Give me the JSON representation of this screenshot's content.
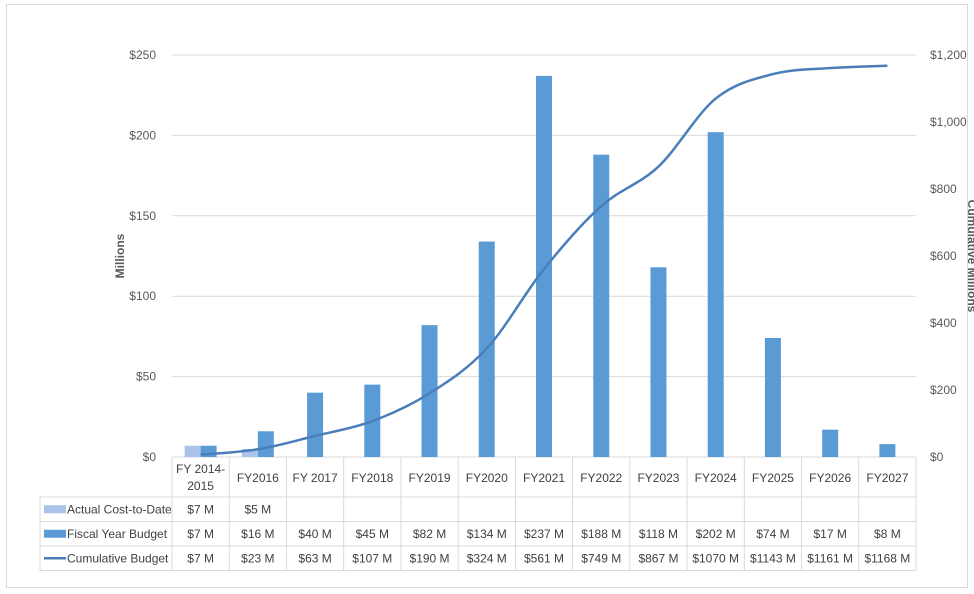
{
  "chart_data": {
    "type": "bar",
    "categories": [
      "FY 2014-2015",
      "FY2016",
      "FY 2017",
      "FY2018",
      "FY2019",
      "FY2020",
      "FY2021",
      "FY2022",
      "FY2023",
      "FY2024",
      "FY2025",
      "FY2026",
      "FY2027"
    ],
    "category_lines": [
      [
        "FY 2014-",
        "2015"
      ],
      [
        "FY2016"
      ],
      [
        "FY 2017"
      ],
      [
        "FY2018"
      ],
      [
        "FY2019"
      ],
      [
        "FY2020"
      ],
      [
        "FY2021"
      ],
      [
        "FY2022"
      ],
      [
        "FY2023"
      ],
      [
        "FY2024"
      ],
      [
        "FY2025"
      ],
      [
        "FY2026"
      ],
      [
        "FY2027"
      ]
    ],
    "ylabel": "Millions",
    "y2label": "Cumulative Millions",
    "ylim": [
      0,
      250
    ],
    "y2lim": [
      0,
      1200
    ],
    "yticks": [
      0,
      50,
      100,
      150,
      200,
      250
    ],
    "ytick_labels": [
      "$0",
      "$50",
      "$100",
      "$150",
      "$200",
      "$250"
    ],
    "y2ticks": [
      0,
      200,
      400,
      600,
      800,
      1000,
      1200
    ],
    "y2tick_labels": [
      "$0",
      "$200",
      "$400",
      "$600",
      "$800",
      "$1,000",
      "$1,200"
    ],
    "grid": true,
    "series": [
      {
        "name": "Actual Cost-to-Date",
        "type": "bar",
        "axis": "left",
        "color": "#a9c4e8",
        "values": [
          7,
          5,
          null,
          null,
          null,
          null,
          null,
          null,
          null,
          null,
          null,
          null,
          null
        ],
        "labels": [
          "$7 M",
          "$5 M",
          "",
          "",
          "",
          "",
          "",
          "",
          "",
          "",
          "",
          "",
          ""
        ]
      },
      {
        "name": "Fiscal Year Budget",
        "type": "bar",
        "axis": "left",
        "color": "#5b9bd5",
        "values": [
          7,
          16,
          40,
          45,
          82,
          134,
          237,
          188,
          118,
          202,
          74,
          17,
          8
        ],
        "labels": [
          "$7 M",
          "$16 M",
          "$40 M",
          "$45 M",
          "$82 M",
          "$134 M",
          "$237 M",
          "$188 M",
          "$118 M",
          "$202 M",
          "$74 M",
          "$17 M",
          "$8 M"
        ]
      },
      {
        "name": "Cumulative Budget",
        "type": "line",
        "axis": "right",
        "color": "#4a7ebb",
        "values": [
          7,
          23,
          63,
          107,
          190,
          324,
          561,
          749,
          867,
          1070,
          1143,
          1161,
          1168
        ],
        "labels": [
          "$7 M",
          "$23 M",
          "$63 M",
          "$107 M",
          "$190 M",
          "$324 M",
          "$561 M",
          "$749 M",
          "$867 M",
          "$1070 M",
          "$1143 M",
          "$1161 M",
          "$1168 M"
        ]
      }
    ]
  }
}
